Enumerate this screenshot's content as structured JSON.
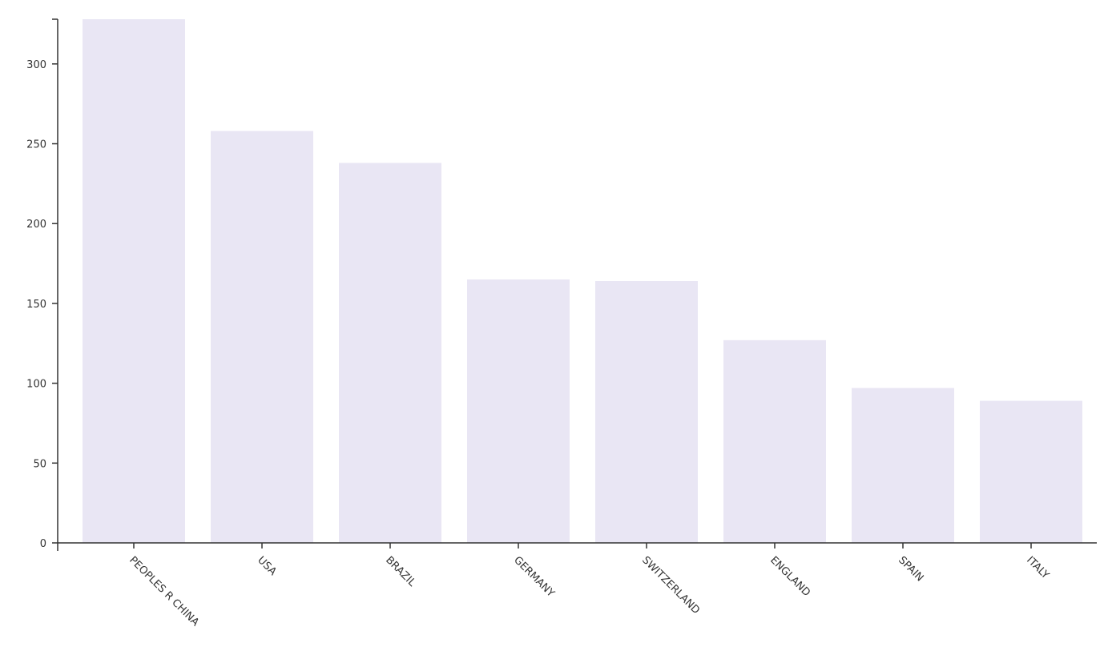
{
  "chart_data": {
    "type": "bar",
    "categories": [
      "PEOPLES R CHINA",
      "USA",
      "BRAZIL",
      "GERMANY",
      "SWITZERLAND",
      "ENGLAND",
      "SPAIN",
      "ITALY"
    ],
    "values": [
      328,
      258,
      238,
      165,
      164,
      127,
      97,
      89
    ],
    "color": "#e9e6f4",
    "ylim": [
      0,
      328
    ],
    "yticks": [
      0,
      50,
      100,
      150,
      200,
      250,
      300
    ],
    "grid": false
  }
}
